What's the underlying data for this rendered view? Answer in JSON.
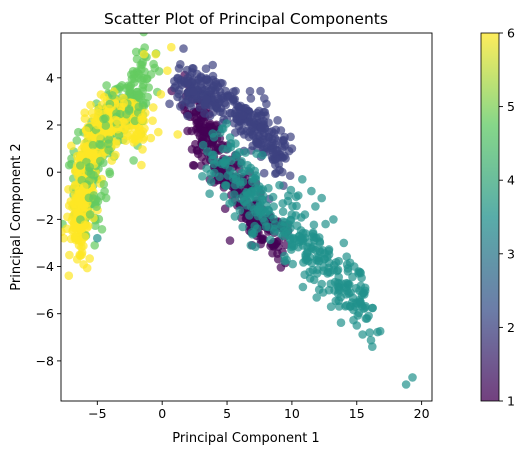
{
  "chart_data": {
    "type": "scatter",
    "title": "Scatter Plot of Principal Components",
    "xlabel": "Principal Component 1",
    "ylabel": "Principal Component 2",
    "xlim": [
      -7.8,
      20.8
    ],
    "ylim": [
      -9.7,
      5.9
    ],
    "x_ticks": [
      -5,
      0,
      5,
      10,
      15,
      20
    ],
    "x_tick_labels": [
      "−5",
      "0",
      "5",
      "10",
      "15",
      "20"
    ],
    "y_ticks": [
      -8,
      -6,
      -4,
      -2,
      0,
      2,
      4
    ],
    "y_tick_labels": [
      "−8",
      "−6",
      "−4",
      "−2",
      "0",
      "2",
      "4"
    ],
    "grid": false,
    "colormap": "viridis",
    "marker_alpha": 0.7,
    "colorbar": {
      "range": [
        1,
        6
      ],
      "ticks": [
        1,
        2,
        3,
        4,
        5,
        6
      ],
      "tick_labels": [
        "1",
        "2",
        "3",
        "4",
        "5",
        "6"
      ],
      "colors": [
        "#440154",
        "#3b528b",
        "#21918c",
        "#5ec962",
        "#fde725"
      ]
    },
    "clusters": [
      {
        "value": 1,
        "color": "#440154",
        "approx_count": 300,
        "centerline": [
          [
            2.0,
            3.2
          ],
          [
            3.0,
            1.8
          ],
          [
            4.5,
            0.5
          ],
          [
            6.0,
            -0.8
          ],
          [
            7.5,
            -2.2
          ],
          [
            9.0,
            -3.0
          ]
        ],
        "spread": 0.5
      },
      {
        "value": 2,
        "color": "#3b528b",
        "approx_count": 300,
        "centerline": [
          [
            1.2,
            3.9
          ],
          [
            3.0,
            3.5
          ],
          [
            5.0,
            2.9
          ],
          [
            6.5,
            2.3
          ],
          [
            8.0,
            1.3
          ],
          [
            9.5,
            0.3
          ]
        ],
        "spread": 0.5
      },
      {
        "value": 3.5,
        "color": "#21918c",
        "approx_count": 330,
        "centerline": [
          [
            4.0,
            1.0
          ],
          [
            6.0,
            -0.2
          ],
          [
            8.0,
            -1.5
          ],
          [
            10.0,
            -2.6
          ],
          [
            12.0,
            -3.6
          ],
          [
            14.0,
            -4.8
          ],
          [
            16.0,
            -6.0
          ]
        ],
        "spread": 0.7
      },
      {
        "value": 4.8,
        "color": "#5ec962",
        "approx_count": 320,
        "centerline": [
          [
            -6.2,
            -2.0
          ],
          [
            -5.6,
            0.5
          ],
          [
            -4.5,
            2.0
          ],
          [
            -3.2,
            2.5
          ],
          [
            -2.0,
            3.2
          ],
          [
            -1.3,
            4.3
          ]
        ],
        "spread": 0.6
      },
      {
        "value": 6,
        "color": "#fde725",
        "approx_count": 340,
        "centerline": [
          [
            -6.5,
            -3.5
          ],
          [
            -6.2,
            -1.0
          ],
          [
            -5.5,
            1.2
          ],
          [
            -4.3,
            2.2
          ],
          [
            -2.8,
            2.3
          ],
          [
            -1.5,
            2.0
          ]
        ],
        "spread": 0.5
      }
    ],
    "outliers": [
      {
        "x": 19.3,
        "y": -8.7,
        "value": 3.5
      },
      {
        "x": 18.8,
        "y": -9.0,
        "value": 3.5
      },
      {
        "x": 16.2,
        "y": -7.4,
        "value": 3.5
      },
      {
        "x": 16.0,
        "y": -6.8,
        "value": 3.5
      },
      {
        "x": 15.8,
        "y": -6.2,
        "value": 3.5
      },
      {
        "x": 15.4,
        "y": -5.2,
        "value": 3.5
      },
      {
        "x": 15.0,
        "y": -6.5,
        "value": 3.5
      },
      {
        "x": 14.8,
        "y": -4.0,
        "value": 3.5
      },
      {
        "x": 14.5,
        "y": -5.7,
        "value": 3.5
      },
      {
        "x": 14.0,
        "y": -3.0,
        "value": 3.5
      },
      {
        "x": 13.2,
        "y": -2.0,
        "value": 3.5
      },
      {
        "x": 12.3,
        "y": -1.1,
        "value": 3.5
      },
      {
        "x": 11.5,
        "y": -0.8,
        "value": 3.5
      },
      {
        "x": 10.8,
        "y": -0.3,
        "value": 3.5
      },
      {
        "x": 11.0,
        "y": -1.8,
        "value": 3.5
      },
      {
        "x": 12.6,
        "y": -2.2,
        "value": 3.5
      },
      {
        "x": 8.9,
        "y": 2.2,
        "value": 2
      },
      {
        "x": 9.9,
        "y": 1.5,
        "value": 2
      },
      {
        "x": 10.0,
        "y": 1.0,
        "value": 2
      },
      {
        "x": 1.3,
        "y": 4.4,
        "value": 2
      },
      {
        "x": 2.4,
        "y": 4.4,
        "value": 2
      },
      {
        "x": -2.0,
        "y": 5.1,
        "value": 4.8
      },
      {
        "x": -1.4,
        "y": 5.0,
        "value": 6
      },
      {
        "x": 0.7,
        "y": 5.3,
        "value": 6
      },
      {
        "x": -0.5,
        "y": 5.0,
        "value": 6
      },
      {
        "x": 0.4,
        "y": 4.3,
        "value": 6
      },
      {
        "x": -0.1,
        "y": 3.3,
        "value": 6
      },
      {
        "x": 1.2,
        "y": 1.6,
        "value": 6
      },
      {
        "x": -0.3,
        "y": 1.7,
        "value": 6
      },
      {
        "x": -2.2,
        "y": 0.5,
        "value": 4.8
      },
      {
        "x": -5.2,
        "y": -3.1,
        "value": 4.8
      },
      {
        "x": -5.0,
        "y": -2.8,
        "value": 3.5
      },
      {
        "x": -1.6,
        "y": 0.3,
        "value": 6
      }
    ]
  }
}
